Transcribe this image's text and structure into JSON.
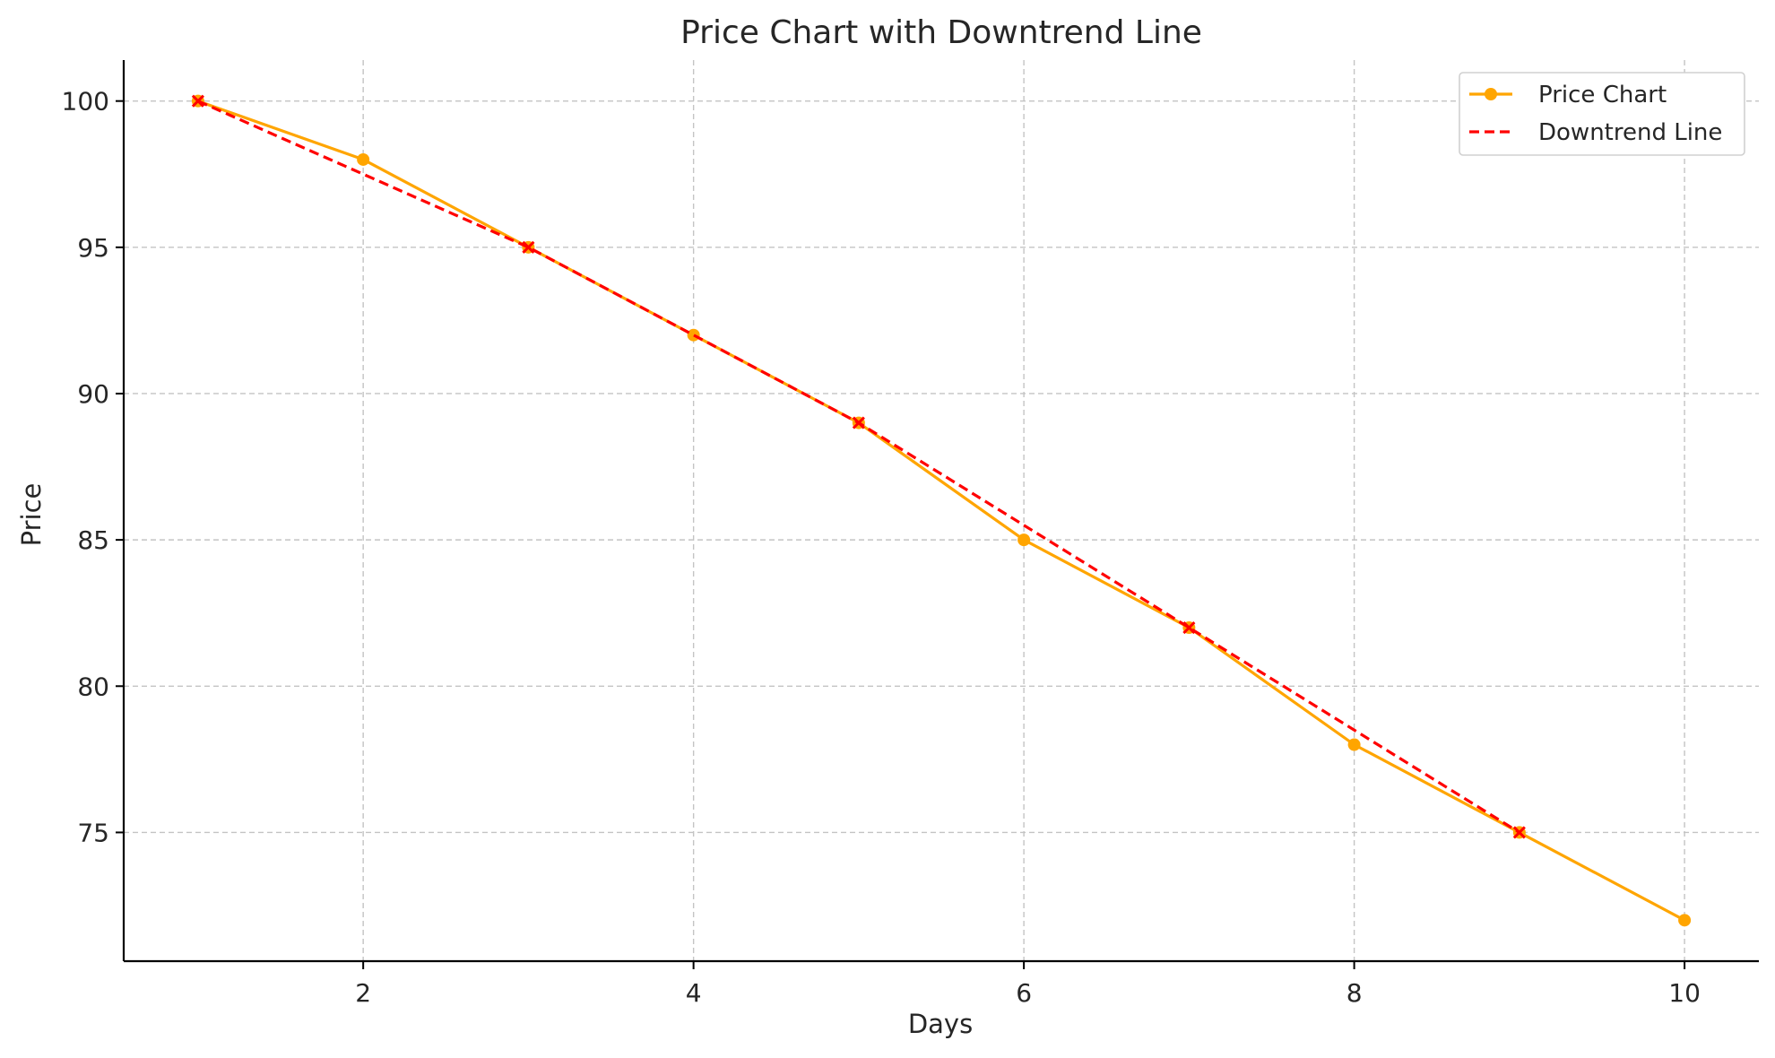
{
  "chart_data": {
    "type": "line",
    "title": "Price Chart with Downtrend Line",
    "xlabel": "Days",
    "ylabel": "Price",
    "xlim": [
      0.55,
      10.45
    ],
    "ylim": [
      70.6,
      101.4
    ],
    "xticks": [
      2,
      4,
      6,
      8,
      10
    ],
    "yticks": [
      75,
      80,
      85,
      90,
      95,
      100
    ],
    "grid": true,
    "legend_position": "top-right",
    "series": [
      {
        "name": "Price Chart",
        "color": "#ffa500",
        "style": "solid",
        "marker": "circle",
        "x": [
          1,
          2,
          3,
          4,
          5,
          6,
          7,
          8,
          9,
          10
        ],
        "y": [
          100,
          98,
          95,
          92,
          89,
          85,
          82,
          78,
          75,
          72
        ]
      },
      {
        "name": "Downtrend Line",
        "color": "#ff0000",
        "style": "dashed",
        "marker": "x",
        "x": [
          1,
          3,
          5,
          7,
          9
        ],
        "y": [
          100,
          95,
          89,
          82,
          75
        ]
      }
    ]
  }
}
